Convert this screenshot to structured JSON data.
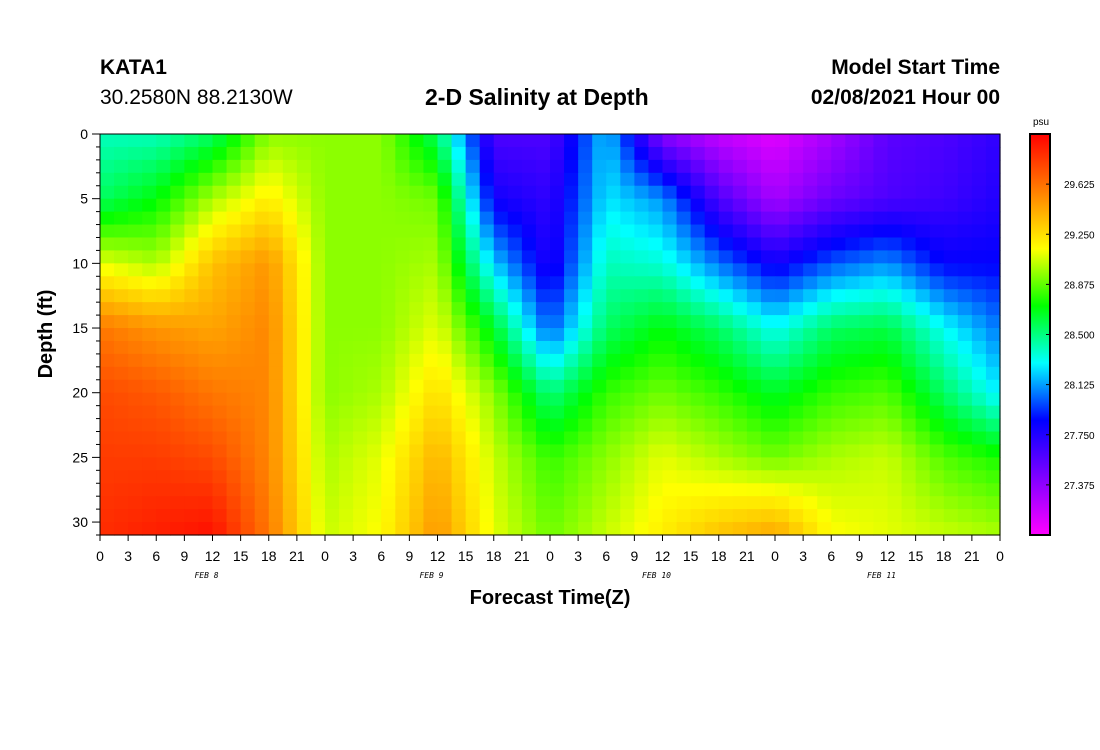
{
  "header": {
    "station": "KATA1",
    "coords": "30.2580N 88.2130W",
    "title": "2-D Salinity at Depth",
    "model_start_label": "Model Start Time",
    "model_start_value": "02/08/2021 Hour 00"
  },
  "chart_data": {
    "type": "heatmap",
    "title": "2-D Salinity at Depth",
    "xlabel": "Forecast Time(Z)",
    "ylabel": "Depth (ft)",
    "x_tick_labels": [
      "0",
      "3",
      "6",
      "9",
      "12",
      "15",
      "18",
      "21",
      "0",
      "3",
      "6",
      "9",
      "12",
      "15",
      "18",
      "21",
      "0",
      "3",
      "6",
      "9",
      "12",
      "15",
      "18",
      "21",
      "0",
      "3",
      "6",
      "9",
      "12",
      "15",
      "18",
      "21",
      "0"
    ],
    "day_labels": [
      "FEB 8",
      "FEB 9",
      "FEB 10",
      "FEB 11"
    ],
    "day_label_hours": [
      12,
      36,
      60,
      84
    ],
    "xlim_hours": [
      0,
      96
    ],
    "y_ticks": [
      0,
      5,
      10,
      15,
      20,
      25,
      30
    ],
    "ylim": [
      0,
      31
    ],
    "y_inverted": true,
    "colorbar": {
      "unit": "psu",
      "vmin": 27.0,
      "vmax": 30.0,
      "tick_values": [
        27.375,
        27.75,
        28.125,
        28.5,
        28.875,
        29.25,
        29.625
      ],
      "tick_labels": [
        "27.375",
        "27.750",
        "28.125",
        "28.500",
        "28.875",
        "29.250",
        "29.625"
      ],
      "colors": [
        "#ff00ff",
        "#8000ff",
        "#0000ff",
        "#00ffff",
        "#00ff00",
        "#ffff00",
        "#ff8000",
        "#ff0000"
      ]
    },
    "salinity_grid": {
      "hours": [
        0,
        6,
        12,
        18,
        24,
        30,
        36,
        42,
        48,
        54,
        60,
        66,
        72,
        78,
        84,
        90,
        96
      ],
      "depths": [
        0,
        5,
        10,
        15,
        20,
        25,
        31
      ],
      "values_psu": [
        [
          28.4,
          28.4,
          28.55,
          28.95,
          28.95,
          28.95,
          28.55,
          27.6,
          27.6,
          28.2,
          27.4,
          27.2,
          27.1,
          27.3,
          27.55,
          27.6,
          27.7
        ],
        [
          28.55,
          28.7,
          29.0,
          29.2,
          28.95,
          28.95,
          28.9,
          27.8,
          27.7,
          28.25,
          28.1,
          27.6,
          27.3,
          27.5,
          27.6,
          27.65,
          27.75
        ],
        [
          29.1,
          29.0,
          29.35,
          29.5,
          28.95,
          28.95,
          29.0,
          28.2,
          27.75,
          28.4,
          28.35,
          28.05,
          27.8,
          28.0,
          28.1,
          27.85,
          27.85
        ],
        [
          29.6,
          29.5,
          29.45,
          29.55,
          28.95,
          28.95,
          29.1,
          28.65,
          28.0,
          28.55,
          28.7,
          28.55,
          28.3,
          28.55,
          28.6,
          28.3,
          28.05
        ],
        [
          29.75,
          29.7,
          29.6,
          29.55,
          28.95,
          29.0,
          29.25,
          28.95,
          28.5,
          28.8,
          28.9,
          28.8,
          28.65,
          28.8,
          28.85,
          28.55,
          28.25
        ],
        [
          29.8,
          29.8,
          29.75,
          29.55,
          29.0,
          29.1,
          29.4,
          29.05,
          28.8,
          28.95,
          29.1,
          29.0,
          28.9,
          29.0,
          29.05,
          28.85,
          28.75
        ],
        [
          29.85,
          29.9,
          29.95,
          29.6,
          29.05,
          29.15,
          29.5,
          29.1,
          28.9,
          29.05,
          29.2,
          29.35,
          29.45,
          29.15,
          29.1,
          29.05,
          29.0
        ]
      ]
    }
  }
}
